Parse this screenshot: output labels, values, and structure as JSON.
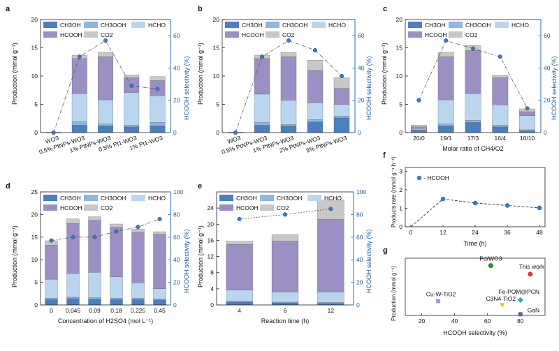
{
  "colors": {
    "ch3oh": "#4a7fc0",
    "ch3ooh": "#8eb6de",
    "hcho": "#b9d6ee",
    "hcooh": "#9b8fc3",
    "co2": "#c8c8c8",
    "selectivity_axis": "#2f6ea8",
    "marker": "#3f79b8",
    "g_pdwo3": "#2e8b3a",
    "g_thiswork": "#e23a3a",
    "g_fepom": "#2aa7a7",
    "g_c3n4": "#f2c000",
    "g_cuw": "#a79ad3",
    "g_gan": "#556b90"
  },
  "legend": {
    "ch3oh": "CH3OH",
    "ch3ooh": "CH3OOH",
    "hcho": "HCHO",
    "hcooh": "HCOOH",
    "co2": "CO2",
    "hcooh_line": "- HCOOH"
  },
  "chart_data": [
    {
      "panel": "a",
      "type": "bar",
      "ylabel": "Production (mmol g⁻¹)",
      "y2label": "HCOOH selectivity (%)",
      "ylim": [
        0,
        20
      ],
      "yticks": [
        0,
        5,
        10,
        15,
        20
      ],
      "y2lim": [
        0,
        70
      ],
      "y2ticks": [
        0,
        20,
        40,
        60
      ],
      "categories": [
        "WO3",
        "0.5% PtNPs-WO3",
        "1% PtNPs-WO3",
        "0.5% Pt1-WO3",
        "1% Pt1-WO3"
      ],
      "series": [
        {
          "name": "CH3OH",
          "values": [
            0,
            1.3,
            1.2,
            1.0,
            1.2
          ]
        },
        {
          "name": "CH3OOH",
          "values": [
            0,
            0.6,
            0.3,
            0.3,
            0.6
          ]
        },
        {
          "name": "HCHO",
          "values": [
            0,
            5.0,
            4.3,
            5.8,
            4.7
          ]
        },
        {
          "name": "HCOOH",
          "values": [
            0,
            6.2,
            7.6,
            2.6,
            2.7
          ]
        },
        {
          "name": "CO2",
          "values": [
            0.1,
            0.6,
            0.8,
            0.5,
            0.7
          ]
        }
      ],
      "selectivity": [
        0,
        47,
        57,
        29,
        27
      ]
    },
    {
      "panel": "b",
      "type": "bar",
      "ylabel": "Production (mmol g⁻¹)",
      "y2label": "HCOOH selectivity (%)",
      "ylim": [
        0,
        20
      ],
      "yticks": [
        0,
        5,
        10,
        15,
        20
      ],
      "y2lim": [
        0,
        70
      ],
      "y2ticks": [
        0,
        20,
        40,
        60
      ],
      "categories": [
        "WO3",
        "0.5% PtNPs-WO3",
        "1% PtNPs-WO3",
        "2% PtNPs-WO3",
        "3% PtNPs-WO3"
      ],
      "series": [
        {
          "name": "CH3OH",
          "values": [
            0,
            1.3,
            1.2,
            1.9,
            2.6
          ]
        },
        {
          "name": "CH3OOH",
          "values": [
            0,
            0.5,
            0.2,
            0.4,
            0.3
          ]
        },
        {
          "name": "HCHO",
          "values": [
            0,
            5.0,
            4.3,
            3.0,
            2.1
          ]
        },
        {
          "name": "HCOOH",
          "values": [
            0,
            6.3,
            7.7,
            5.7,
            2.8
          ]
        },
        {
          "name": "CO2",
          "values": [
            0.1,
            0.6,
            0.8,
            1.8,
            1.9
          ]
        }
      ],
      "selectivity": [
        0,
        47,
        57,
        51,
        35
      ]
    },
    {
      "panel": "c",
      "type": "bar",
      "ylabel": "Production (mmol g⁻¹)",
      "y2label": "HCOOH selectivity (%)",
      "xlabel": "Molar ratio of CH4/O2",
      "ylim": [
        0,
        20
      ],
      "yticks": [
        0,
        5,
        10,
        15,
        20
      ],
      "y2lim": [
        0,
        70
      ],
      "y2ticks": [
        0,
        20,
        40,
        60
      ],
      "categories": [
        "20/0",
        "19/1",
        "17/3",
        "16/4",
        "10/10"
      ],
      "series": [
        {
          "name": "CH3OH",
          "values": [
            0.4,
            1.2,
            1.8,
            1.0,
            0.3
          ]
        },
        {
          "name": "CH3OOH",
          "values": [
            0.1,
            0.3,
            0.4,
            0.3,
            0.2
          ]
        },
        {
          "name": "HCHO",
          "values": [
            0.2,
            4.3,
            4.7,
            3.6,
            2.5
          ]
        },
        {
          "name": "HCOOH",
          "values": [
            0.3,
            7.6,
            7.6,
            4.8,
            0.7
          ]
        },
        {
          "name": "CO2",
          "values": [
            0.3,
            0.8,
            0.9,
            0.4,
            0.5
          ]
        }
      ],
      "selectivity": [
        20,
        57,
        52,
        47,
        15
      ]
    },
    {
      "panel": "d",
      "type": "bar",
      "ylabel": "Production (mmol g⁻¹)",
      "y2label": "HCOOH selectivity (%)",
      "xlabel": "Concentration of H2SO4 (mol L⁻¹)",
      "ylim": [
        0,
        25
      ],
      "yticks": [
        0,
        5,
        10,
        15,
        20,
        25
      ],
      "y2lim": [
        0,
        100
      ],
      "y2ticks": [
        0,
        20,
        40,
        60,
        80,
        100
      ],
      "categories": [
        "0",
        "0.045",
        "0.09",
        "0.18",
        "0.225",
        "0.45"
      ],
      "series": [
        {
          "name": "CH3OH",
          "values": [
            1.2,
            1.4,
            1.3,
            1.2,
            1.2,
            1.1
          ]
        },
        {
          "name": "CH3OOH",
          "values": [
            0.3,
            0.3,
            0.3,
            0.3,
            0.3,
            0.2
          ]
        },
        {
          "name": "HCHO",
          "values": [
            4.2,
            5.3,
            5.6,
            4.7,
            3.4,
            2.3
          ]
        },
        {
          "name": "HCOOH",
          "values": [
            7.5,
            11.0,
            11.5,
            11.0,
            11.2,
            12.0
          ]
        },
        {
          "name": "CO2",
          "values": [
            1.0,
            1.0,
            0.8,
            0.7,
            0.7,
            0.6
          ]
        }
      ],
      "selectivity": [
        57,
        60,
        60,
        65,
        69,
        76
      ]
    },
    {
      "panel": "e",
      "type": "bar",
      "ylabel": "Production (mmol g⁻¹)",
      "y2label": "HCOOH selectivity (%)",
      "xlabel": "Reaction time (h)",
      "ylim": [
        0,
        28
      ],
      "yticks": [
        0,
        4,
        8,
        12,
        16,
        20,
        24
      ],
      "y2lim": [
        0,
        100
      ],
      "y2ticks": [
        0,
        20,
        40,
        60,
        80,
        100
      ],
      "categories": [
        "4",
        "6",
        "12"
      ],
      "series": [
        {
          "name": "CH3OH",
          "values": [
            0.7,
            0.5,
            0.4
          ]
        },
        {
          "name": "CH3OOH",
          "values": [
            0.3,
            0.2,
            0.2
          ]
        },
        {
          "name": "HCHO",
          "values": [
            2.7,
            2.5,
            2.6
          ]
        },
        {
          "name": "HCOOH",
          "values": [
            11.3,
            12.6,
            18.0
          ]
        },
        {
          "name": "CO2",
          "values": [
            0.8,
            1.6,
            4.8
          ]
        }
      ],
      "selectivity": [
        76,
        80,
        85
      ]
    },
    {
      "panel": "f",
      "type": "line",
      "ylabel": "Products rate (mmol g⁻¹ h⁻¹)",
      "xlabel": "Time (h)",
      "xlim": [
        0,
        48
      ],
      "xticks": [
        0,
        12,
        24,
        36,
        48
      ],
      "ylim": [
        0,
        3.2
      ],
      "yticks": [
        0,
        1,
        2,
        3
      ],
      "series": [
        {
          "name": "HCOOH",
          "x": [
            0,
            12,
            24,
            36,
            48
          ],
          "y": [
            0,
            1.5,
            1.28,
            1.15,
            1.02
          ]
        }
      ]
    },
    {
      "panel": "g",
      "type": "scatter",
      "ylabel": "Production (mmol g⁻¹)",
      "xlabel": "HCOOH selectivity (%)",
      "xlim": [
        10,
        95
      ],
      "xticks": [
        20,
        40,
        60,
        80
      ],
      "ylim": [
        0,
        1
      ],
      "points": [
        {
          "label": "Pd/WO3",
          "x": 62,
          "y": 0.87,
          "color": "#2e8b3a"
        },
        {
          "label": "This work",
          "x": 86,
          "y": 0.72,
          "color": "#e23a3a"
        },
        {
          "label": "Fe-POM@PCN",
          "x": 80,
          "y": 0.27,
          "color": "#2aa7a7"
        },
        {
          "label": "C3N4-TiO2",
          "x": 69,
          "y": 0.18,
          "color": "#f2c000"
        },
        {
          "label": "Cu-W-TiO2",
          "x": 30,
          "y": 0.25,
          "color": "#a79ad3"
        },
        {
          "label": "GaN",
          "x": 80,
          "y": 0.02,
          "color": "#556b90"
        }
      ]
    }
  ]
}
